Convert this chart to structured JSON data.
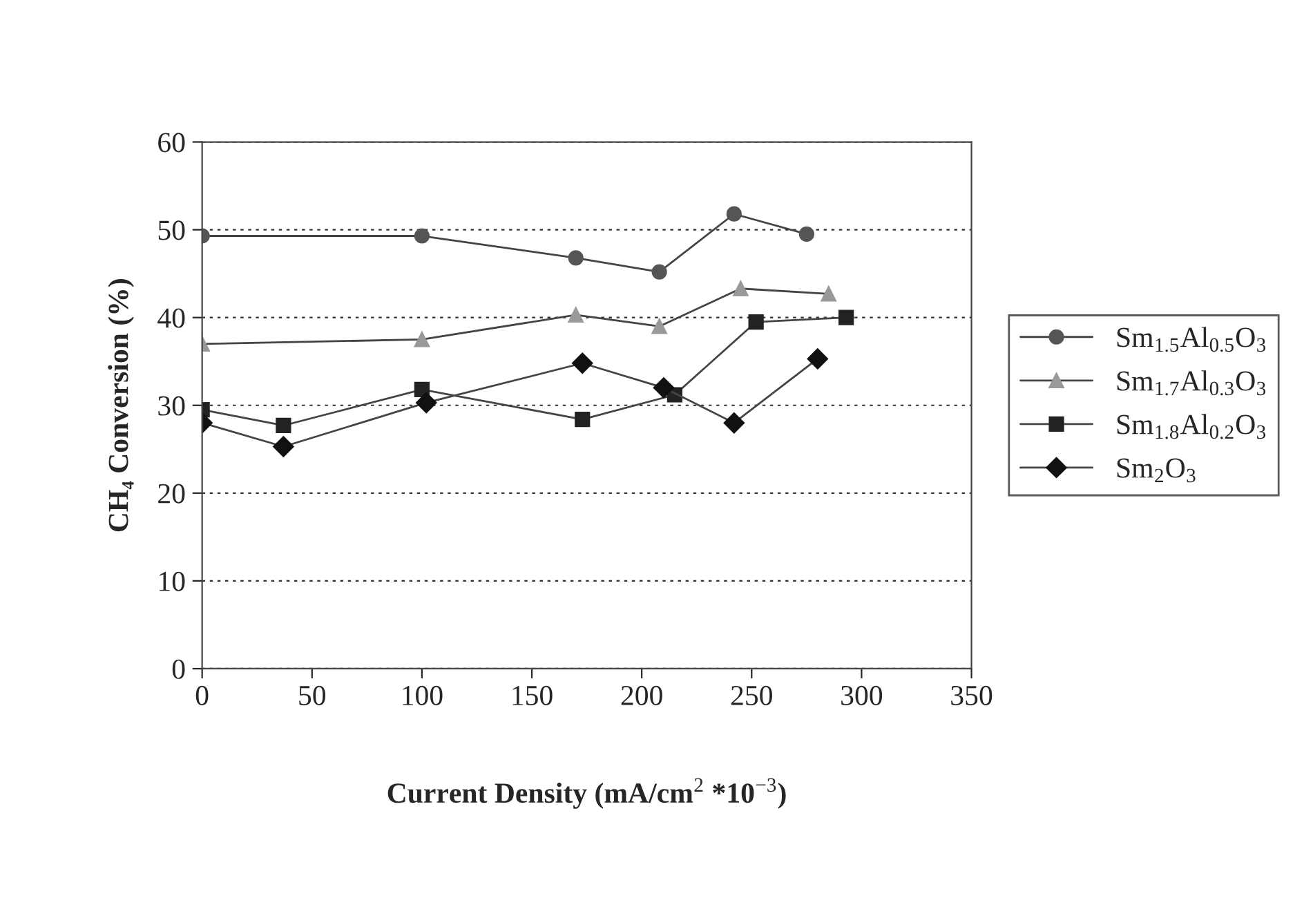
{
  "chart_data": {
    "type": "line",
    "xlabel": "Current Density (mA/cm$^{2}$ *10$^{−3}$)",
    "ylabel": "CH₄ Conversion (%)",
    "xlim": [
      0,
      350
    ],
    "xticks": [
      0,
      50,
      100,
      150,
      200,
      250,
      300,
      350
    ],
    "ylim": [
      0,
      60
    ],
    "yticks": [
      0,
      10,
      20,
      30,
      40,
      50,
      60
    ],
    "grid": "y",
    "legend": "right",
    "line_style": "solid",
    "series": [
      {
        "name": "Sm$_{1.5}$Al$_{0.5}$O$_{3}$",
        "color": "#555555",
        "marker": "circle",
        "x": [
          0,
          100,
          170,
          208,
          242,
          275
        ],
        "values": [
          49.3,
          49.3,
          46.8,
          45.2,
          51.8,
          49.5
        ]
      },
      {
        "name": "Sm$_{1.7}$Al$_{0.3}$O$_{3}$",
        "color": "#999999",
        "marker": "triangle",
        "x": [
          0,
          100,
          170,
          208,
          245,
          285
        ],
        "values": [
          37,
          37.5,
          40.3,
          39,
          43.3,
          42.7
        ]
      },
      {
        "name": "Sm$_{1.8}$Al$_{0.2}$O$_{3}$",
        "color": "#222222",
        "marker": "square",
        "x": [
          0,
          37,
          100,
          173,
          215,
          252,
          293
        ],
        "values": [
          29.5,
          27.7,
          31.8,
          28.4,
          31.2,
          39.5,
          40
        ]
      },
      {
        "name": "Sm$_{2}$O$_{3}$",
        "color": "#111111",
        "marker": "diamond",
        "x": [
          0,
          37,
          102,
          173,
          210,
          242,
          280
        ],
        "values": [
          28,
          25.3,
          30.3,
          34.8,
          32,
          28,
          35.3
        ]
      }
    ]
  }
}
